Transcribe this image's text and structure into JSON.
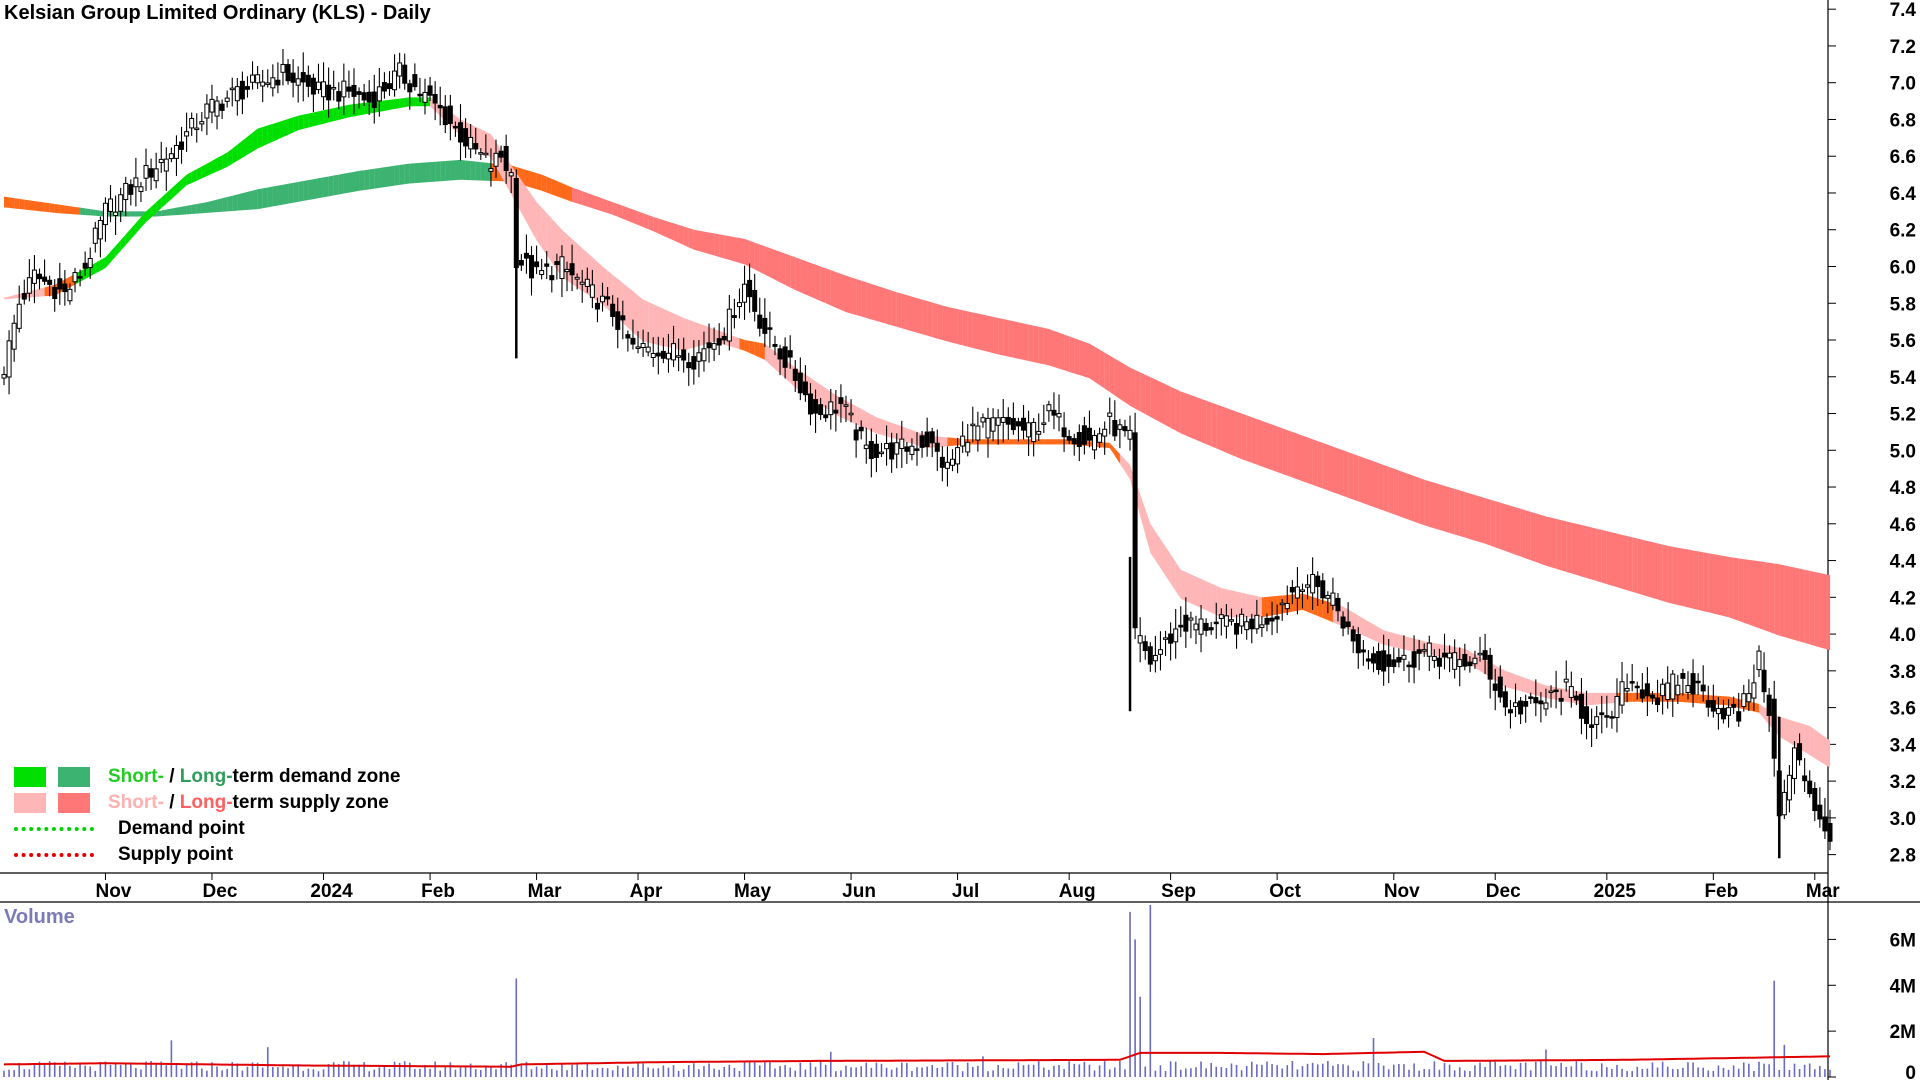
{
  "chart_data": {
    "type": "candlestick",
    "title": "Kelsian Group Limited Ordinary (KLS) - Daily",
    "x_tick_labels": [
      "Nov",
      "Dec",
      "2024",
      "Feb",
      "Mar",
      "Apr",
      "May",
      "Jun",
      "Jul",
      "Aug",
      "Sep",
      "Oct",
      "Nov",
      "Dec",
      "2025",
      "Feb",
      "Mar"
    ],
    "x_tick_index": [
      20,
      41,
      63,
      84,
      105,
      125,
      146,
      167,
      188,
      210,
      230,
      251,
      274,
      294,
      316,
      337,
      357
    ],
    "y_tick_labels": [
      "7.4",
      "7.2",
      "7.0",
      "6.8",
      "6.6",
      "6.4",
      "6.2",
      "6.0",
      "5.8",
      "5.6",
      "5.4",
      "5.2",
      "5.0",
      "4.8",
      "4.6",
      "4.4",
      "4.2",
      "4.0",
      "3.8",
      "3.6",
      "3.4",
      "3.2",
      "3.0",
      "2.8"
    ],
    "ylim": [
      2.7,
      7.45
    ],
    "price_anchors": [
      [
        0,
        5.45
      ],
      [
        3,
        5.8
      ],
      [
        6,
        5.95
      ],
      [
        12,
        5.85
      ],
      [
        16,
        6.0
      ],
      [
        20,
        6.3
      ],
      [
        28,
        6.5
      ],
      [
        34,
        6.65
      ],
      [
        40,
        6.85
      ],
      [
        46,
        6.95
      ],
      [
        55,
        7.05
      ],
      [
        62,
        6.95
      ],
      [
        68,
        6.95
      ],
      [
        72,
        6.9
      ],
      [
        78,
        7.05
      ],
      [
        82,
        6.95
      ],
      [
        86,
        6.85
      ],
      [
        92,
        6.65
      ],
      [
        96,
        6.55
      ],
      [
        98,
        6.6
      ],
      [
        100,
        6.5
      ],
      [
        101,
        6.05
      ],
      [
        105,
        5.95
      ],
      [
        110,
        6.0
      ],
      [
        116,
        5.85
      ],
      [
        120,
        5.75
      ],
      [
        124,
        5.55
      ],
      [
        130,
        5.55
      ],
      [
        136,
        5.5
      ],
      [
        142,
        5.65
      ],
      [
        146,
        5.9
      ],
      [
        150,
        5.65
      ],
      [
        155,
        5.45
      ],
      [
        160,
        5.2
      ],
      [
        165,
        5.25
      ],
      [
        170,
        5.0
      ],
      [
        176,
        5.0
      ],
      [
        182,
        5.05
      ],
      [
        186,
        4.9
      ],
      [
        190,
        5.1
      ],
      [
        196,
        5.15
      ],
      [
        202,
        5.1
      ],
      [
        206,
        5.2
      ],
      [
        210,
        5.1
      ],
      [
        214,
        5.05
      ],
      [
        218,
        5.15
      ],
      [
        222,
        5.05
      ],
      [
        223,
        4.0
      ],
      [
        226,
        3.85
      ],
      [
        232,
        4.05
      ],
      [
        238,
        4.05
      ],
      [
        244,
        4.05
      ],
      [
        250,
        4.1
      ],
      [
        256,
        4.3
      ],
      [
        262,
        4.2
      ],
      [
        266,
        3.95
      ],
      [
        270,
        3.85
      ],
      [
        276,
        3.85
      ],
      [
        280,
        3.9
      ],
      [
        286,
        3.85
      ],
      [
        292,
        3.85
      ],
      [
        296,
        3.6
      ],
      [
        302,
        3.6
      ],
      [
        308,
        3.7
      ],
      [
        312,
        3.55
      ],
      [
        316,
        3.5
      ],
      [
        320,
        3.75
      ],
      [
        326,
        3.65
      ],
      [
        330,
        3.75
      ],
      [
        334,
        3.7
      ],
      [
        338,
        3.6
      ],
      [
        342,
        3.55
      ],
      [
        346,
        3.85
      ],
      [
        348,
        3.6
      ],
      [
        350,
        3.0
      ],
      [
        353,
        3.35
      ],
      [
        356,
        3.15
      ],
      [
        358,
        3.0
      ],
      [
        360,
        2.9
      ]
    ],
    "short_term_zone": [
      [
        0,
        5.83,
        5.83
      ],
      [
        10,
        5.9,
        5.85
      ],
      [
        20,
        6.05,
        6.0
      ],
      [
        28,
        6.3,
        6.25
      ],
      [
        36,
        6.5,
        6.45
      ],
      [
        44,
        6.62,
        6.55
      ],
      [
        50,
        6.75,
        6.65
      ],
      [
        58,
        6.82,
        6.75
      ],
      [
        68,
        6.88,
        6.82
      ],
      [
        80,
        6.92,
        6.88
      ],
      [
        84,
        6.92,
        6.88
      ],
      [
        90,
        6.8,
        6.72
      ],
      [
        96,
        6.72,
        6.6
      ],
      [
        100,
        6.55,
        6.4
      ],
      [
        105,
        6.35,
        6.15
      ],
      [
        110,
        6.2,
        5.95
      ],
      [
        118,
        6.0,
        5.8
      ],
      [
        126,
        5.82,
        5.6
      ],
      [
        134,
        5.72,
        5.55
      ],
      [
        140,
        5.66,
        5.6
      ],
      [
        146,
        5.6,
        5.55
      ],
      [
        150,
        5.58,
        5.5
      ],
      [
        156,
        5.45,
        5.35
      ],
      [
        164,
        5.3,
        5.2
      ],
      [
        172,
        5.18,
        5.1
      ],
      [
        182,
        5.08,
        5.02
      ],
      [
        190,
        5.06,
        5.04
      ],
      [
        200,
        5.06,
        5.04
      ],
      [
        210,
        5.06,
        5.04
      ],
      [
        218,
        5.04,
        5.02
      ],
      [
        222,
        4.92,
        4.85
      ],
      [
        226,
        4.6,
        4.45
      ],
      [
        232,
        4.35,
        4.2
      ],
      [
        240,
        4.25,
        4.1
      ],
      [
        248,
        4.2,
        4.1
      ],
      [
        256,
        4.22,
        4.14
      ],
      [
        264,
        4.15,
        4.05
      ],
      [
        272,
        4.02,
        3.95
      ],
      [
        280,
        3.96,
        3.9
      ],
      [
        288,
        3.92,
        3.86
      ],
      [
        296,
        3.8,
        3.72
      ],
      [
        304,
        3.72,
        3.66
      ],
      [
        312,
        3.68,
        3.62
      ],
      [
        320,
        3.68,
        3.64
      ],
      [
        330,
        3.68,
        3.64
      ],
      [
        340,
        3.66,
        3.62
      ],
      [
        346,
        3.62,
        3.58
      ],
      [
        350,
        3.55,
        3.45
      ],
      [
        356,
        3.5,
        3.35
      ],
      [
        360,
        3.42,
        3.28
      ]
    ],
    "long_term_zone": [
      [
        0,
        6.38,
        6.33
      ],
      [
        10,
        6.34,
        6.3
      ],
      [
        20,
        6.3,
        6.28
      ],
      [
        30,
        6.3,
        6.28
      ],
      [
        40,
        6.35,
        6.3
      ],
      [
        50,
        6.42,
        6.32
      ],
      [
        60,
        6.47,
        6.37
      ],
      [
        70,
        6.52,
        6.42
      ],
      [
        80,
        6.56,
        6.46
      ],
      [
        90,
        6.58,
        6.48
      ],
      [
        100,
        6.55,
        6.47
      ],
      [
        106,
        6.5,
        6.42
      ],
      [
        112,
        6.43,
        6.36
      ],
      [
        120,
        6.35,
        6.29
      ],
      [
        128,
        6.27,
        6.2
      ],
      [
        136,
        6.2,
        6.1
      ],
      [
        146,
        6.15,
        6.02
      ],
      [
        156,
        6.05,
        5.88
      ],
      [
        166,
        5.95,
        5.76
      ],
      [
        176,
        5.86,
        5.68
      ],
      [
        186,
        5.78,
        5.6
      ],
      [
        196,
        5.72,
        5.53
      ],
      [
        206,
        5.66,
        5.47
      ],
      [
        214,
        5.58,
        5.4
      ],
      [
        222,
        5.45,
        5.25
      ],
      [
        232,
        5.32,
        5.1
      ],
      [
        244,
        5.2,
        4.96
      ],
      [
        256,
        5.08,
        4.84
      ],
      [
        268,
        4.96,
        4.72
      ],
      [
        280,
        4.84,
        4.6
      ],
      [
        292,
        4.74,
        4.5
      ],
      [
        304,
        4.64,
        4.38
      ],
      [
        316,
        4.56,
        4.28
      ],
      [
        328,
        4.48,
        4.18
      ],
      [
        340,
        4.42,
        4.1
      ],
      [
        350,
        4.38,
        4.0
      ],
      [
        360,
        4.32,
        3.92
      ]
    ],
    "volume": {
      "y_tick_labels": [
        "6M",
        "4M",
        "2M",
        "0"
      ],
      "ylim": [
        0,
        7.5
      ],
      "spikes": [
        [
          33,
          1.6
        ],
        [
          52,
          1.3
        ],
        [
          101,
          4.3
        ],
        [
          163,
          1.1
        ],
        [
          193,
          0.9
        ],
        [
          222,
          7.2
        ],
        [
          223,
          6.0
        ],
        [
          224,
          3.5
        ],
        [
          226,
          7.5
        ],
        [
          270,
          1.7
        ],
        [
          304,
          1.2
        ],
        [
          349,
          4.2
        ],
        [
          351,
          1.4
        ]
      ],
      "average": [
        [
          0,
          0.55
        ],
        [
          20,
          0.6
        ],
        [
          60,
          0.5
        ],
        [
          100,
          0.45
        ],
        [
          102,
          0.55
        ],
        [
          130,
          0.65
        ],
        [
          160,
          0.7
        ],
        [
          220,
          0.75
        ],
        [
          224,
          1.05
        ],
        [
          240,
          1.05
        ],
        [
          260,
          1.0
        ],
        [
          280,
          1.1
        ],
        [
          284,
          0.7
        ],
        [
          320,
          0.75
        ],
        [
          360,
          0.9
        ]
      ]
    }
  },
  "legend": {
    "items": [
      {
        "short": "Short-",
        "sep": " / ",
        "long": "Long-",
        "rest": "term demand zone"
      },
      {
        "short": "Short-",
        "sep": " / ",
        "long": "Long-",
        "rest": "term supply zone"
      }
    ],
    "demand_point": "Demand point",
    "supply_point": "Supply point"
  },
  "volume_title": "Volume",
  "colors": {
    "demand_short": "#00e000",
    "demand_long": "#3cb371",
    "supply_short": "#ffb6b6",
    "supply_long": "#ff7777",
    "neutral_band": "#ff6a1a",
    "volume_bar": "#6a6ac0",
    "volume_avg": "#e00000",
    "short_text": "#22cc22",
    "long_text": "#2e9e5a",
    "short_supply_text": "#ffb0b0",
    "long_supply_text": "#ff6060"
  }
}
